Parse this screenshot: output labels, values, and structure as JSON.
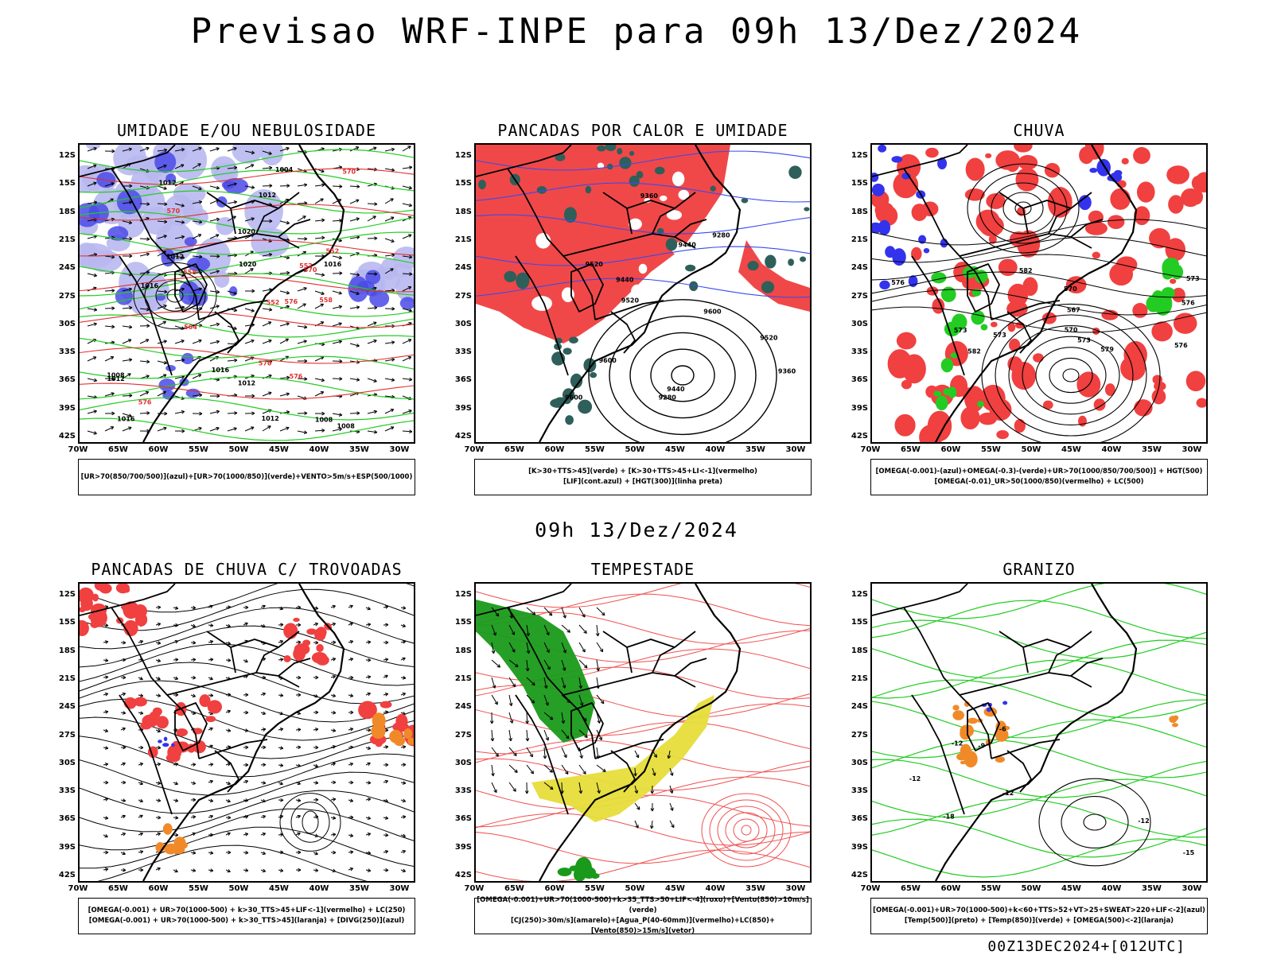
{
  "page": {
    "title": "Previsao WRF-INPE  para 09h 13/Dez/2024",
    "mid_title": "09h 13/Dez/2024",
    "footer": "00Z13DEC2024+[012UTC]"
  },
  "axes": {
    "lat_labels": [
      "12S",
      "15S",
      "18S",
      "21S",
      "24S",
      "27S",
      "30S",
      "33S",
      "36S",
      "39S",
      "42S"
    ],
    "lon_labels": [
      "70W",
      "65W",
      "60W",
      "55W",
      "50W",
      "45W",
      "40W",
      "35W",
      "30W"
    ]
  },
  "panels": [
    {
      "id": "umidade",
      "title": "UMIDADE E/OU NEBULOSIDADE",
      "legend": [
        "[UR>70(850/700/500)](azul)+[UR>70(1000/850)](verde)+VENTO>5m/s+ESP(500/1000)"
      ],
      "contour_labels": [
        "1012",
        "1012",
        "1008",
        "1004",
        "1012",
        "1008",
        "1016",
        "1016",
        "1016",
        "1012",
        "1008",
        "1016",
        "1012",
        "1020",
        "1020",
        "1012"
      ],
      "red_labels": [
        "570",
        "576",
        "576",
        "576",
        "570",
        "564",
        "552",
        "558",
        "570",
        "570",
        "552",
        "558",
        "552"
      ],
      "colors": {
        "contour": "#000000",
        "red": "#e03030",
        "green": "#22cc22",
        "blue": "#4a4ae8",
        "lightblue": "#b8b8f0"
      }
    },
    {
      "id": "pancadas-calor",
      "title": "PANCADAS POR CALOR E UMIDADE",
      "legend": [
        "[K>30+TTS>45](verde) + [K>30+TTS>45+LI<-1](vermelho)",
        "[LIF](cont.azul) + [HGT(300)](linha preta)"
      ],
      "contour_labels": [
        "9600",
        "9600",
        "9600",
        "9520",
        "9520",
        "9520",
        "9440",
        "9440",
        "9360",
        "9440",
        "9280",
        "9280",
        "9360"
      ],
      "colors": {
        "contour": "#000000",
        "red": "#f04848",
        "teal": "#2f5f5a",
        "blue": "#3a4aee"
      }
    },
    {
      "id": "chuva",
      "title": "CHUVA",
      "legend": [
        "[OMEGA(-0.001)-(azul)+OMEGA(-0.3)-(verde)+UR>70(1000/850/700/500)] + HGT(500)",
        "[OMEGA(-0.01)_UR>50(1000/850)(vermelho) + LC(500)"
      ],
      "contour_labels": [
        "582",
        "582",
        "579",
        "576",
        "573",
        "576",
        "576",
        "573",
        "570",
        "570",
        "567",
        "573",
        "573"
      ],
      "colors": {
        "contour": "#000000",
        "red": "#f04040",
        "green": "#22cc22",
        "blue": "#3333ee"
      }
    },
    {
      "id": "pancadas-trovoadas",
      "title": "PANCADAS DE CHUVA C/ TROVOADAS",
      "legend": [
        "[OMEGA(-0.001) + UR>70(1000-500) + k>30_TTS>45+LIF<-1](vermelho) + LC(250)",
        "[OMEGA(-0.001) + UR>70(1000-500) + k>30_TTS>45](laranja) + [DIVG(250)](azul)"
      ],
      "contour_labels": [],
      "colors": {
        "contour": "#000000",
        "red": "#f04040",
        "orange": "#f08a28",
        "blue": "#3333ee"
      }
    },
    {
      "id": "tempestade",
      "title": "TEMPESTADE",
      "legend": [
        "[OMEGA(-0.001)+UR>70(1000-500)+k>35_TTS>50+LIF<-4](roxo)+[Vento(850)>10m/s](verde)",
        "[CJ(250)>30m/s](amarelo)+[Agua_P(40-60mm)](vermelho)+LC(850)+[Vento(850)>15m/s](vetor)"
      ],
      "contour_labels": [],
      "colors": {
        "contour": "#f05050",
        "green": "#1a9a1a",
        "yellow": "#e6dd3a",
        "vector": "#000000"
      }
    },
    {
      "id": "granizo",
      "title": "GRANIZO",
      "legend": [
        "[OMEGA(-0.001)+UR>70(1000-500)+k<60+TTS>52+VT>25+SWEAT>220+LIF<-2](azul)",
        "[Temp(500)](preto) + [Temp(850)](verde) + [OMEGA(500)<-2](laranja)"
      ],
      "contour_labels": [
        "-9",
        "-12",
        "-12",
        "-12",
        "-15",
        "-18",
        "-12",
        "-6"
      ],
      "colors": {
        "contour": "#000000",
        "green": "#22cc22",
        "orange": "#f08a28",
        "blue": "#3333ee"
      }
    }
  ]
}
